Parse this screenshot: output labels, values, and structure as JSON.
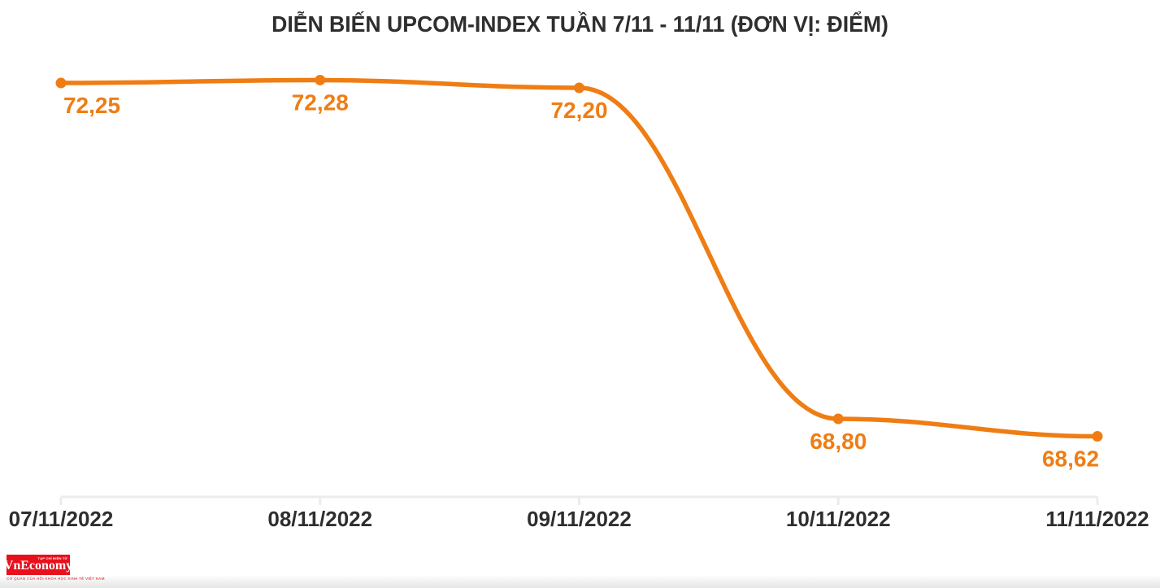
{
  "title": "DIỄN BIẾN UPCOM-INDEX TUẦN 7/11 - 11/11 (ĐƠN VỊ: ĐIỂM)",
  "chart_data": {
    "type": "line",
    "title": "DIỄN BIẾN UPCOM-INDEX TUẦN 7/11 - 11/11 (ĐƠN VỊ: ĐIỂM)",
    "categories": [
      "07/11/2022",
      "08/11/2022",
      "09/11/2022",
      "10/11/2022",
      "11/11/2022"
    ],
    "values": [
      72.25,
      72.28,
      72.2,
      68.8,
      68.62
    ],
    "point_labels": [
      "72,25",
      "72,28",
      "72,20",
      "68,80",
      "68,62"
    ],
    "xlabel": "",
    "ylabel": "",
    "unit": "ĐIỂM",
    "ylim": [
      68.5,
      72.5
    ],
    "grid": false,
    "legend": false,
    "smooth": true,
    "line_color": "#ef7d13",
    "point_color": "#ef7d13",
    "point_label_color": "#ef7d13",
    "axis_color": "#ececec",
    "tick_label_color": "#2e2e2e"
  },
  "logo": {
    "name": "VnEconomy",
    "top_text": "TẠP CHÍ ĐIỆN TỬ",
    "tagline": "CƠ QUAN CỦA HỘI KHOA HỌC KINH TẾ VIỆT NAM",
    "bg_color": "#e8101c"
  }
}
